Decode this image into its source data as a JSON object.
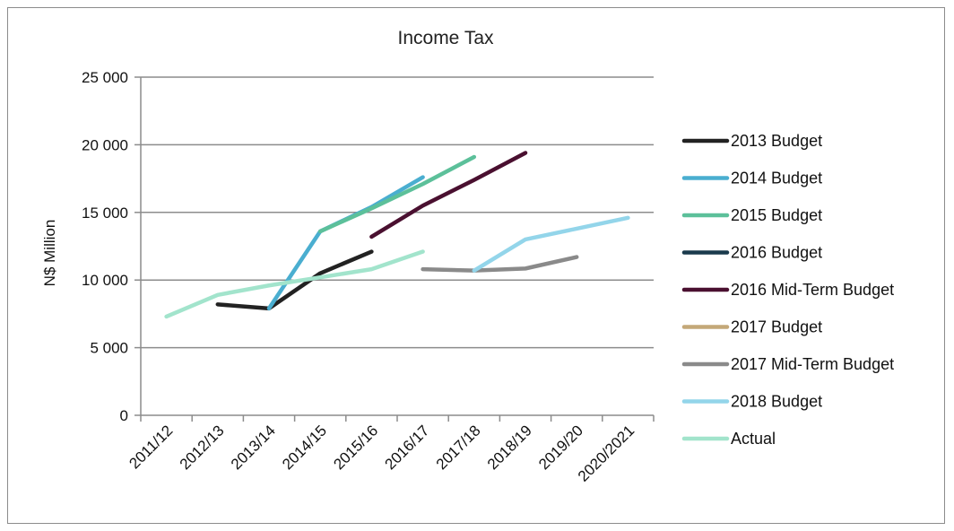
{
  "chart_data": {
    "type": "line",
    "title": "Income Tax",
    "ylabel": "N$ Million",
    "xlabel": "",
    "categories": [
      "2011/12",
      "2012/13",
      "2013/14",
      "2014/15",
      "2015/16",
      "2016/17",
      "2017/18",
      "2018/19",
      "2019/20",
      "2020/2021"
    ],
    "y_ticks": [
      "0",
      "5 000",
      "10 000",
      "15 000",
      "20 000",
      "25 000"
    ],
    "ylim": [
      0,
      25000
    ],
    "grid": "horizontal",
    "legend_position": "right",
    "series": [
      {
        "name": "2013 Budget",
        "color": "#222222",
        "values": [
          null,
          8200,
          7900,
          10500,
          12100,
          null,
          null,
          null,
          null,
          null
        ]
      },
      {
        "name": "2014 Budget",
        "color": "#4aaed0",
        "values": [
          null,
          null,
          7900,
          13600,
          15400,
          17600,
          null,
          null,
          null,
          null
        ]
      },
      {
        "name": "2015 Budget",
        "color": "#5cc09a",
        "values": [
          null,
          null,
          null,
          13600,
          15300,
          17100,
          19100,
          null,
          null,
          null
        ]
      },
      {
        "name": "2016 Budget",
        "color": "#1a3a4c",
        "values": [
          null,
          null,
          null,
          null,
          null,
          null,
          null,
          null,
          null,
          null
        ]
      },
      {
        "name": "2016 Mid-Term Budget",
        "color": "#4a1030",
        "values": [
          null,
          null,
          null,
          null,
          13200,
          15500,
          17400,
          19400,
          null,
          null
        ]
      },
      {
        "name": "2017 Budget",
        "color": "#c4a878",
        "values": [
          null,
          null,
          null,
          null,
          null,
          null,
          null,
          null,
          null,
          null
        ]
      },
      {
        "name": "2017 Mid-Term Budget",
        "color": "#8a8a8a",
        "values": [
          null,
          null,
          null,
          null,
          null,
          10800,
          10700,
          10850,
          11700,
          null
        ]
      },
      {
        "name": "2018 Budget",
        "color": "#93d5ea",
        "values": [
          null,
          null,
          null,
          null,
          null,
          null,
          10700,
          13000,
          13800,
          14600
        ]
      },
      {
        "name": "Actual",
        "color": "#a2e4cc",
        "values": [
          7300,
          8900,
          9600,
          10200,
          10800,
          12100,
          null,
          null,
          null,
          null
        ]
      }
    ]
  }
}
